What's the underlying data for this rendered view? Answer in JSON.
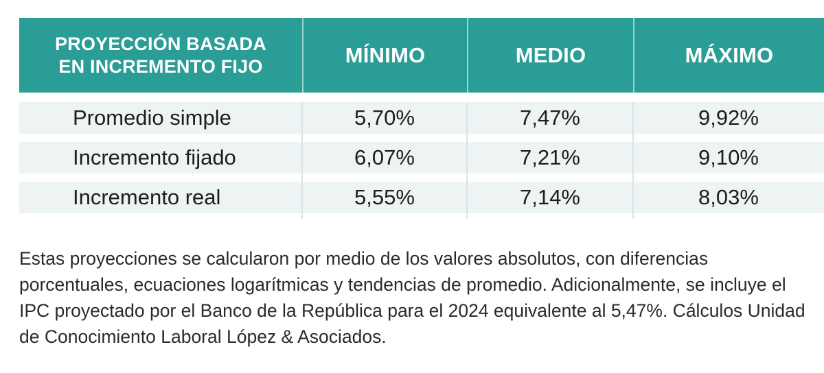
{
  "chart_data": {
    "type": "table",
    "columns": [
      "PROYECCIÓN BASADA EN INCREMENTO FIJO",
      "MÍNIMO",
      "MEDIO",
      "MÁXIMO"
    ],
    "header": {
      "title_line1": "PROYECCIÓN BASADA",
      "title_line2": "EN INCREMENTO FIJO",
      "min": "MÍNIMO",
      "med": "MEDIO",
      "max": "MÁXIMO"
    },
    "rows": [
      {
        "label": "Promedio simple",
        "min": "5,70%",
        "med": "7,47%",
        "max": "9,92%"
      },
      {
        "label": "Incremento fijado",
        "min": "6,07%",
        "med": "7,21%",
        "max": "9,10%"
      },
      {
        "label": "Incremento real",
        "min": "5,55%",
        "med": "7,14%",
        "max": "8,03%"
      }
    ],
    "note": "Estas proyecciones se calcularon por medio de los valores absolutos, con diferencias porcentuales, ecuaciones logarítmicas y tendencias de promedio. Adicionalmente, se incluye el IPC proyectado por el Banco de la República para el 2024 equivalente al 5,47%. Cálculos Unidad de Conocimiento Laboral López & Asociados."
  },
  "colors": {
    "header_bg": "#2a9d96",
    "row_bg": "#eef4f3"
  }
}
